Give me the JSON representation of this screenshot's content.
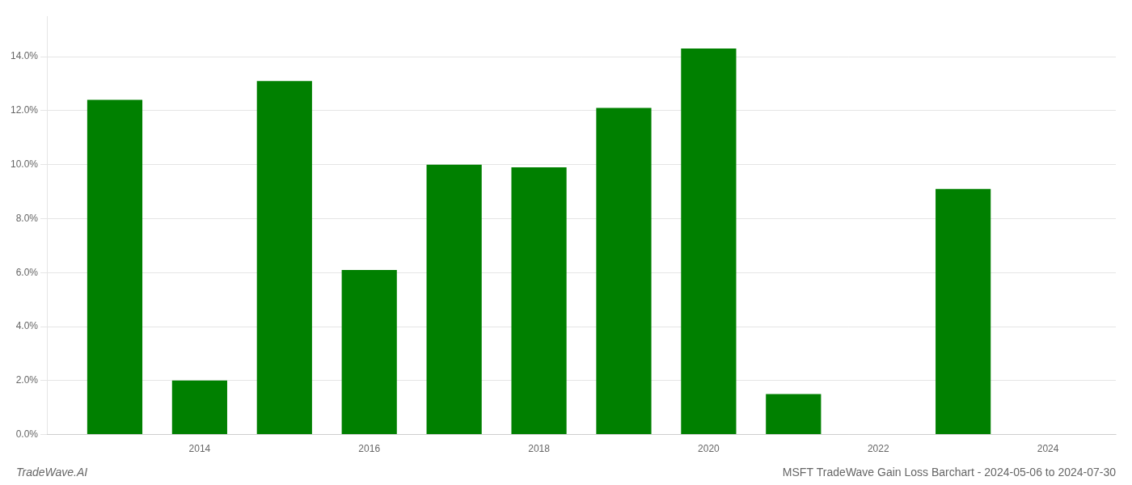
{
  "chart_data": {
    "type": "bar",
    "x": [
      2013,
      2014,
      2015,
      2016,
      2017,
      2018,
      2019,
      2020,
      2021,
      2022,
      2023
    ],
    "values": [
      0.124,
      0.02,
      0.131,
      0.061,
      0.1,
      0.099,
      0.121,
      0.143,
      0.015,
      0.0,
      0.091
    ],
    "color": "#008000",
    "xlim": [
      2012.2,
      2024.8
    ],
    "xticks": [
      2014,
      2016,
      2018,
      2020,
      2022,
      2024
    ],
    "ylim": [
      0,
      0.155
    ],
    "yticks": [
      {
        "value": 0.0,
        "label": "0.0%"
      },
      {
        "value": 0.02,
        "label": "2.0%"
      },
      {
        "value": 0.04,
        "label": "4.0%"
      },
      {
        "value": 0.06,
        "label": "6.0%"
      },
      {
        "value": 0.08,
        "label": "8.0%"
      },
      {
        "value": 0.1,
        "label": "10.0%"
      },
      {
        "value": 0.12,
        "label": "12.0%"
      },
      {
        "value": 0.14,
        "label": "14.0%"
      }
    ],
    "grid": "y",
    "annotations": [
      "TradeWave.AI",
      "MSFT TradeWave Gain Loss Barchart - 2024-05-06 to 2024-07-30"
    ]
  }
}
